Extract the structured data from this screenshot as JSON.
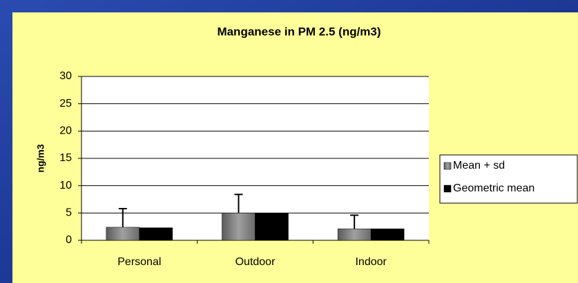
{
  "chart_data": {
    "type": "bar",
    "title": "Manganese in PM 2.5 (ng/m3)",
    "y_label": "ng/m3",
    "categories": [
      "Personal",
      "Outdoor",
      "Indoor"
    ],
    "series": [
      {
        "name": "Mean + sd",
        "color": "#808080",
        "values": [
          2.4,
          5.0,
          2.1
        ],
        "errors": [
          3.4,
          3.4,
          2.5
        ]
      },
      {
        "name": "Geometric mean",
        "color": "#000000",
        "values": [
          2.3,
          5.0,
          2.1
        ]
      }
    ],
    "ylim": [
      0,
      30
    ],
    "yticks": [
      0,
      5,
      10,
      15,
      20,
      25,
      30
    ],
    "grid": true,
    "legend": "right"
  }
}
